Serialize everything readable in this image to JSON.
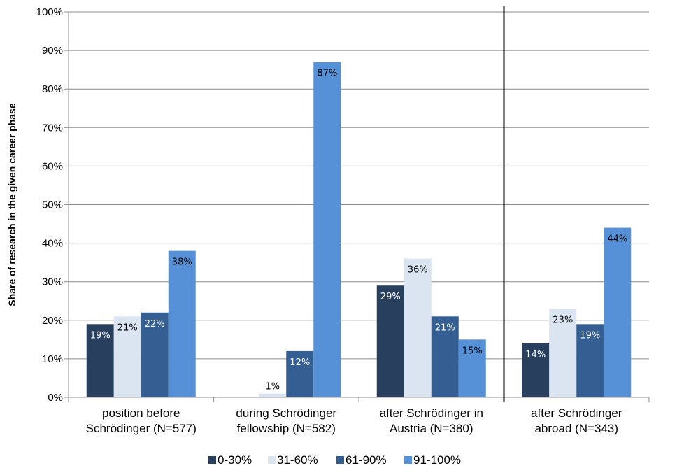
{
  "chart_data": {
    "type": "bar",
    "title": "",
    "xlabel": "",
    "ylabel": "Share of research in the given career phase",
    "ylim": [
      0,
      100
    ],
    "yticks": [
      "0%",
      "10%",
      "20%",
      "30%",
      "40%",
      "50%",
      "60%",
      "70%",
      "80%",
      "90%",
      "100%"
    ],
    "grid": true,
    "legend_position": "bottom",
    "categories": [
      [
        "position before",
        "Schrödinger  (N=577)"
      ],
      [
        "during Schrödinger",
        "fellowship (N=582)"
      ],
      [
        "after Schrödinger in",
        "Austria (N=380)"
      ],
      [
        "after Schrödinger",
        "abroad (N=343)"
      ]
    ],
    "separator_after_category": 2,
    "series": [
      {
        "name": "0-30%",
        "color": "#283f5e",
        "label_color": "#ffffff",
        "values": [
          19,
          0,
          29,
          14
        ],
        "labels": [
          "19%",
          "",
          "29%",
          "14%"
        ]
      },
      {
        "name": "31-60%",
        "color": "#dbe4f1",
        "label_color": "#000000",
        "values": [
          21,
          1,
          36,
          23
        ],
        "labels": [
          "21%",
          "1%",
          "36%",
          "23%"
        ]
      },
      {
        "name": "61-90%",
        "color": "#355f93",
        "label_color": "#ffffff",
        "values": [
          22,
          12,
          21,
          19
        ],
        "labels": [
          "22%",
          "12%",
          "21%",
          "19%"
        ]
      },
      {
        "name": "91-100%",
        "color": "#5690d6",
        "label_color": "#000000",
        "values": [
          38,
          87,
          15,
          44
        ],
        "labels": [
          "38%",
          "87%",
          "15%",
          "44%"
        ]
      }
    ]
  }
}
